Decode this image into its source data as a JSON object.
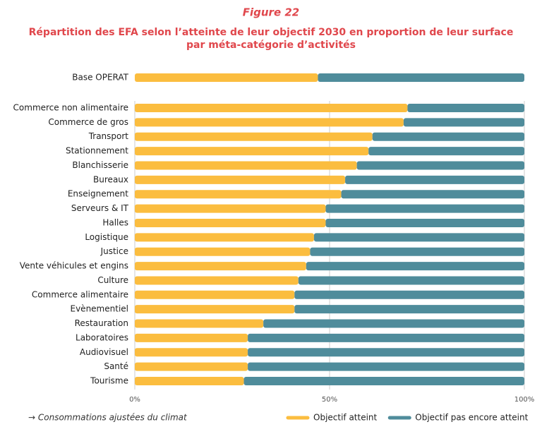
{
  "chart_data": {
    "type": "stacked-barh",
    "title": "Figure 22",
    "subtitle": [
      "Répartition des EFA selon l’atteinte de leur objectif 2030 en proportion de leur surface",
      "par méta-catégorie d’activités"
    ],
    "categories": [
      "Base OPERAT",
      "Commerce non alimentaire",
      "Commerce de gros",
      "Transport",
      "Stationnement",
      "Blanchisserie",
      "Bureaux",
      "Enseignement",
      "Serveurs & IT",
      "Halles",
      "Logistique",
      "Justice",
      "Vente véhicules et engins",
      "Culture",
      "Commerce alimentaire",
      "Evènementiel",
      "Restauration",
      "Laboratoires",
      "Audiovisuel",
      "Santé",
      "Tourisme"
    ],
    "series": [
      {
        "name": "Objectif atteint",
        "color": "#fbbd3f",
        "values": [
          47,
          70,
          69,
          61,
          60,
          57,
          54,
          53,
          49,
          49,
          46,
          45,
          44,
          42,
          41,
          41,
          33,
          29,
          29,
          29,
          28
        ]
      },
      {
        "name": "Objectif pas encore atteint",
        "color": "#4f8c9b",
        "values": [
          53,
          30,
          31,
          39,
          40,
          43,
          46,
          47,
          51,
          51,
          54,
          55,
          56,
          58,
          59,
          59,
          67,
          71,
          71,
          71,
          72
        ]
      }
    ],
    "xlim": [
      0,
      100
    ],
    "xticks": [
      {
        "value": 0,
        "label": "0%"
      },
      {
        "value": 50,
        "label": "50%"
      },
      {
        "value": 100,
        "label": "100%"
      }
    ],
    "grid": true,
    "note": "→ Consommations ajustées du climat"
  }
}
